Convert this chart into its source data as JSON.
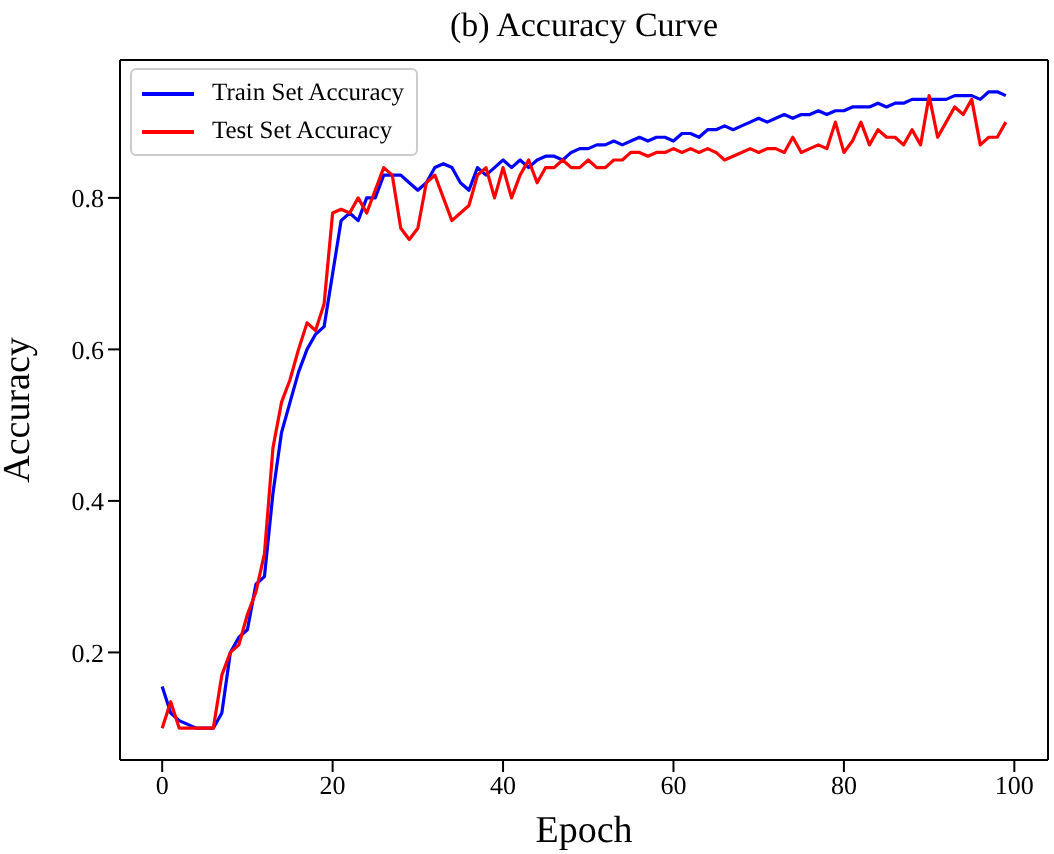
{
  "chart_data": {
    "type": "line",
    "title": "(b) Accuracy Curve",
    "xlabel": "Epoch",
    "ylabel": "Accuracy",
    "x": [
      0,
      1,
      2,
      3,
      4,
      5,
      6,
      7,
      8,
      9,
      10,
      11,
      12,
      13,
      14,
      15,
      16,
      17,
      18,
      19,
      20,
      21,
      22,
      23,
      24,
      25,
      26,
      27,
      28,
      29,
      30,
      31,
      32,
      33,
      34,
      35,
      36,
      37,
      38,
      39,
      40,
      41,
      42,
      43,
      44,
      45,
      46,
      47,
      48,
      49,
      50,
      51,
      52,
      53,
      54,
      55,
      56,
      57,
      58,
      59,
      60,
      61,
      62,
      63,
      64,
      65,
      66,
      67,
      68,
      69,
      70,
      71,
      72,
      73,
      74,
      75,
      76,
      77,
      78,
      79,
      80,
      81,
      82,
      83,
      84,
      85,
      86,
      87,
      88,
      89,
      90,
      91,
      92,
      93,
      94,
      95,
      96,
      97,
      98,
      99
    ],
    "series": [
      {
        "name": "Train Set Accuracy",
        "color": "#0000ff",
        "values": [
          0.155,
          0.12,
          0.11,
          0.105,
          0.1,
          0.1,
          0.1,
          0.12,
          0.2,
          0.22,
          0.23,
          0.29,
          0.3,
          0.41,
          0.49,
          0.53,
          0.57,
          0.6,
          0.62,
          0.63,
          0.7,
          0.77,
          0.78,
          0.77,
          0.8,
          0.8,
          0.83,
          0.83,
          0.83,
          0.82,
          0.81,
          0.82,
          0.84,
          0.845,
          0.84,
          0.82,
          0.81,
          0.84,
          0.83,
          0.84,
          0.85,
          0.84,
          0.85,
          0.84,
          0.85,
          0.855,
          0.855,
          0.85,
          0.86,
          0.865,
          0.865,
          0.87,
          0.87,
          0.875,
          0.87,
          0.875,
          0.88,
          0.875,
          0.88,
          0.88,
          0.875,
          0.885,
          0.885,
          0.88,
          0.89,
          0.89,
          0.895,
          0.89,
          0.895,
          0.9,
          0.905,
          0.9,
          0.905,
          0.91,
          0.905,
          0.91,
          0.91,
          0.915,
          0.91,
          0.915,
          0.915,
          0.92,
          0.92,
          0.92,
          0.925,
          0.92,
          0.925,
          0.925,
          0.93,
          0.93,
          0.93,
          0.93,
          0.93,
          0.935,
          0.935,
          0.935,
          0.93,
          0.94,
          0.94,
          0.935
        ]
      },
      {
        "name": "Test Set Accuracy",
        "color": "#ff0000",
        "values": [
          0.1,
          0.135,
          0.1,
          0.1,
          0.1,
          0.1,
          0.1,
          0.17,
          0.2,
          0.21,
          0.25,
          0.28,
          0.33,
          0.47,
          0.53,
          0.56,
          0.6,
          0.635,
          0.625,
          0.66,
          0.78,
          0.785,
          0.78,
          0.8,
          0.78,
          0.81,
          0.84,
          0.83,
          0.76,
          0.745,
          0.76,
          0.82,
          0.83,
          0.8,
          0.77,
          0.78,
          0.79,
          0.83,
          0.84,
          0.8,
          0.84,
          0.8,
          0.83,
          0.85,
          0.82,
          0.84,
          0.84,
          0.85,
          0.84,
          0.84,
          0.85,
          0.84,
          0.84,
          0.85,
          0.85,
          0.86,
          0.86,
          0.855,
          0.86,
          0.86,
          0.865,
          0.86,
          0.865,
          0.86,
          0.865,
          0.86,
          0.85,
          0.855,
          0.86,
          0.865,
          0.86,
          0.865,
          0.865,
          0.86,
          0.88,
          0.86,
          0.865,
          0.87,
          0.865,
          0.9,
          0.86,
          0.875,
          0.9,
          0.87,
          0.89,
          0.88,
          0.88,
          0.87,
          0.89,
          0.87,
          0.935,
          0.88,
          0.9,
          0.92,
          0.91,
          0.93,
          0.87,
          0.88,
          0.88,
          0.9
        ]
      }
    ],
    "xlim": [
      -4.95,
      103.95
    ],
    "xticks": [
      0,
      20,
      40,
      60,
      80,
      100
    ],
    "ylim": [
      0.058,
      0.982
    ],
    "yticks": [
      0.2,
      0.4,
      0.6,
      0.8
    ],
    "legend": "top left",
    "grid": false,
    "marker": "none",
    "line_style": "solid"
  }
}
